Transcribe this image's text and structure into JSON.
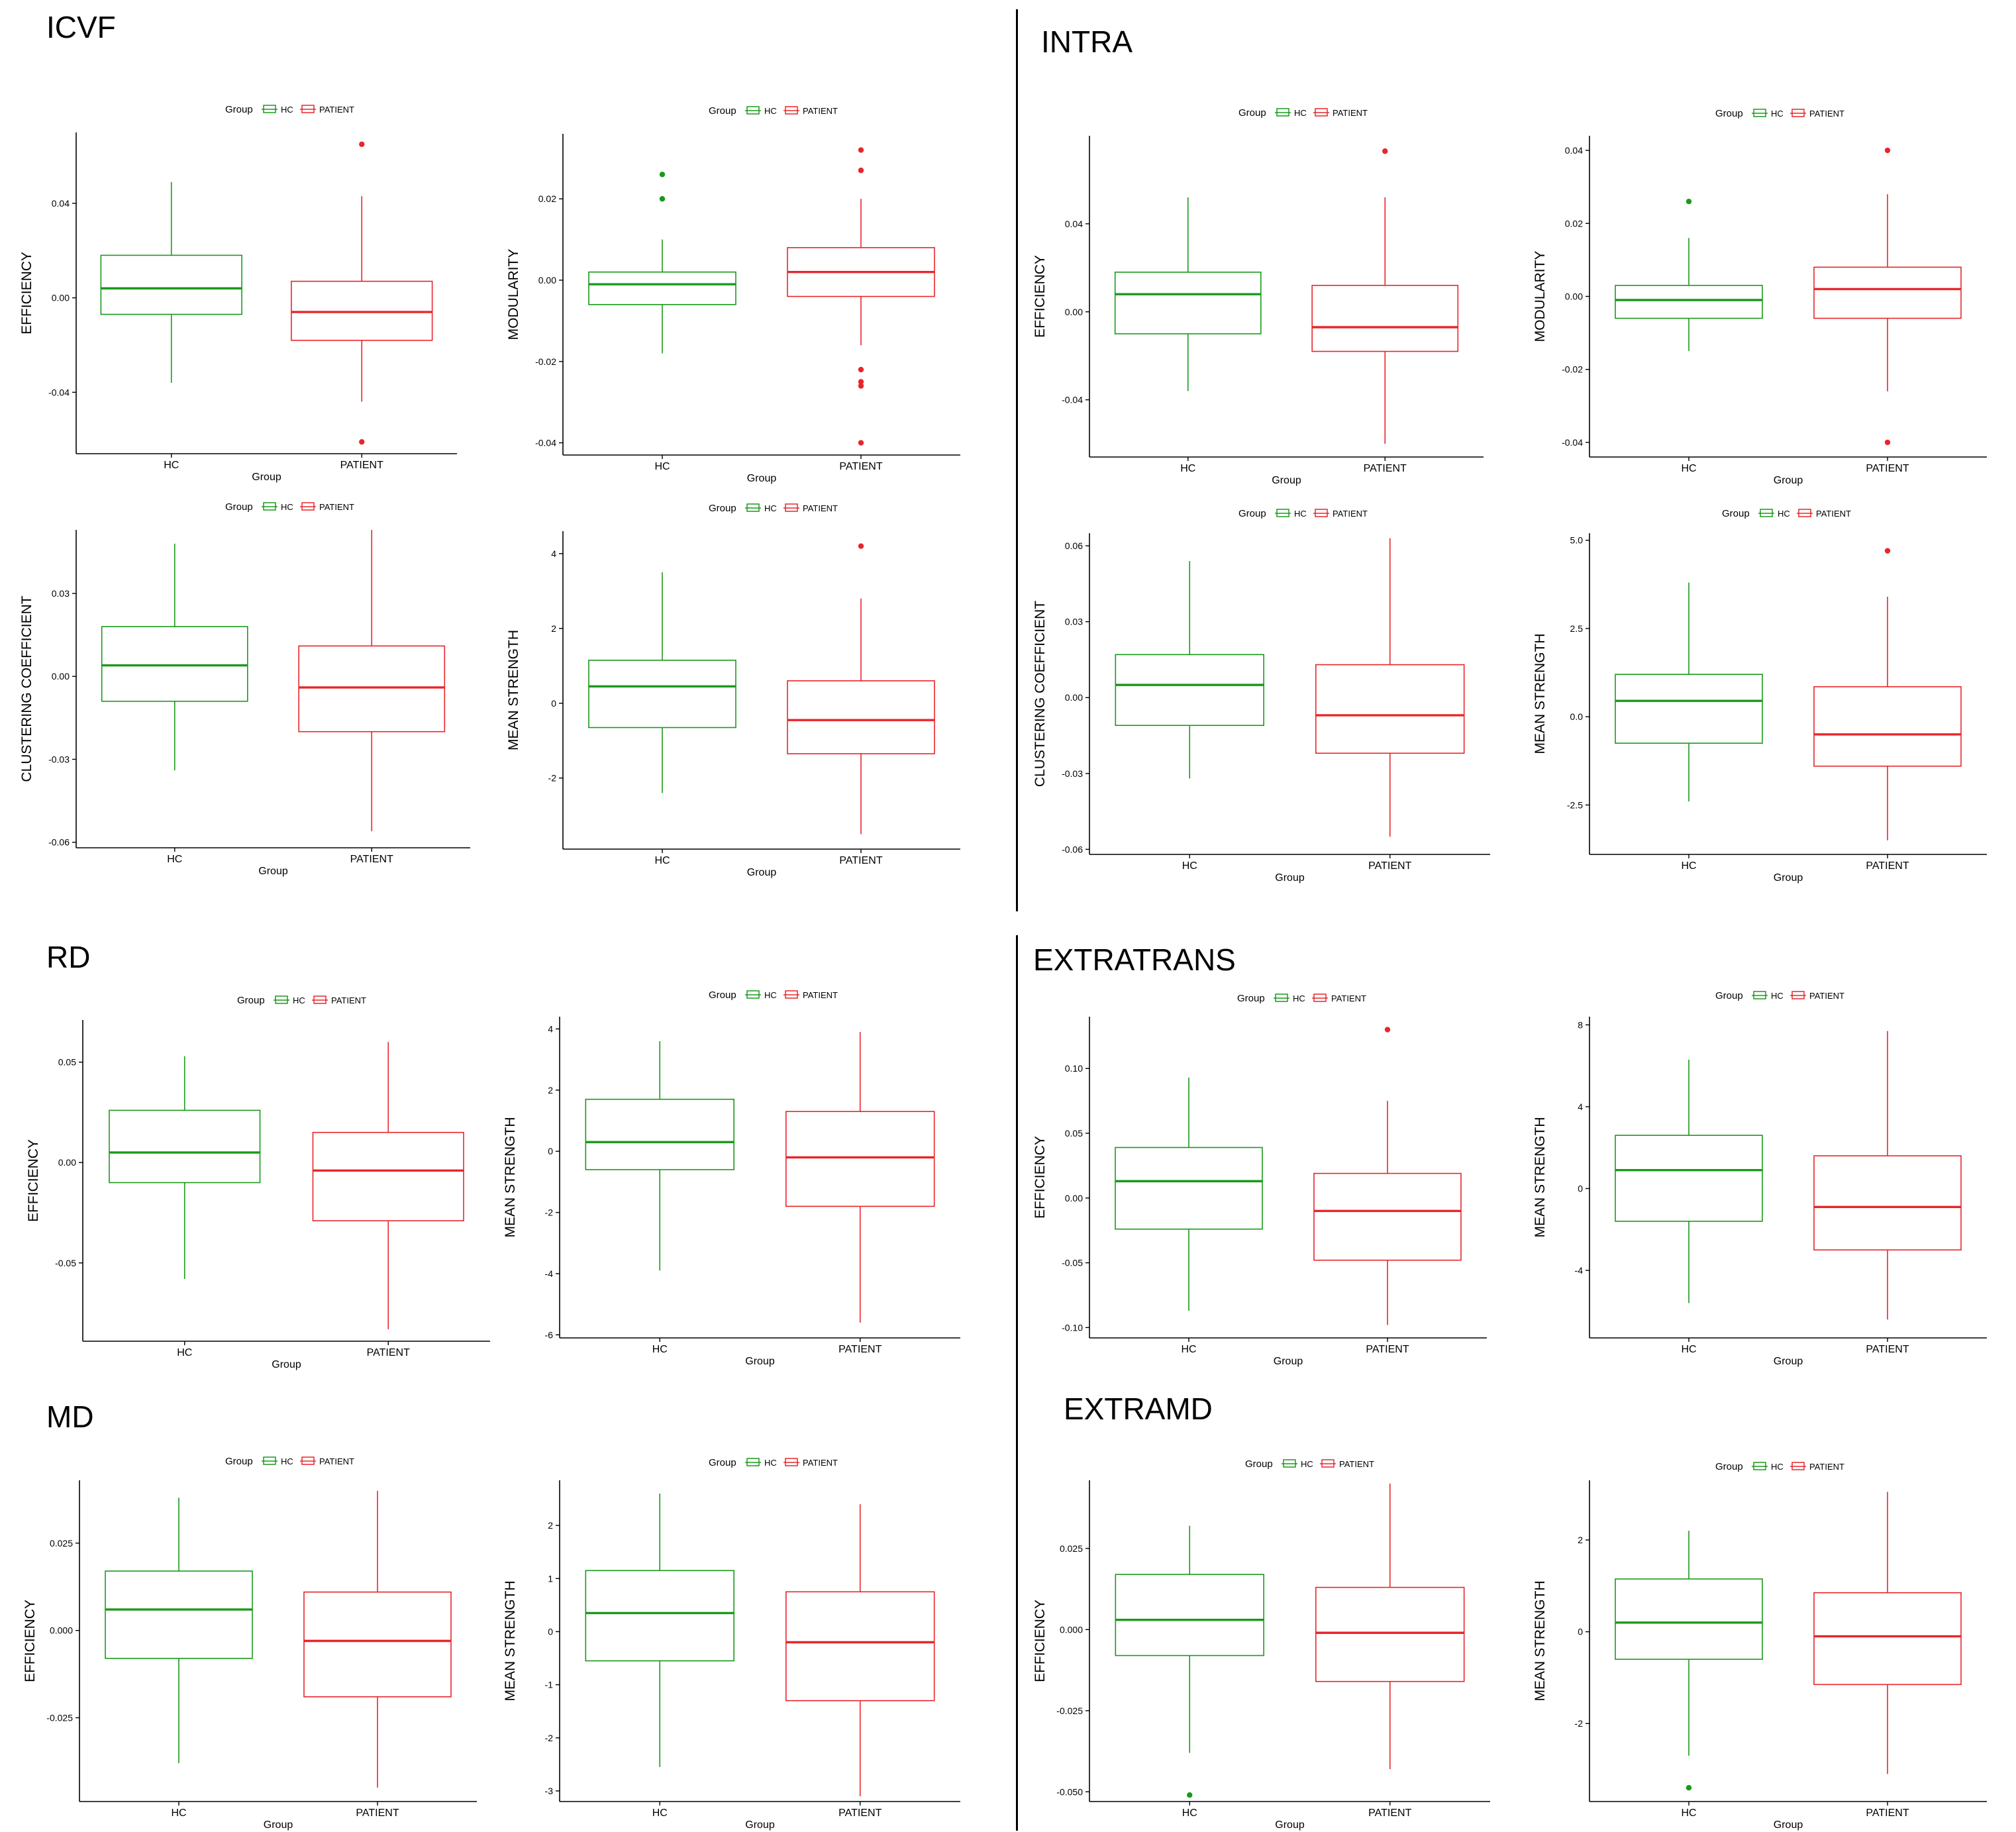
{
  "figure": {
    "sections": [
      {
        "key": "icvf",
        "title": "ICVF"
      },
      {
        "key": "intra",
        "title": "INTRA"
      },
      {
        "key": "rd",
        "title": "RD"
      },
      {
        "key": "extratrans",
        "title": "EXTRATRANS"
      },
      {
        "key": "md",
        "title": "MD"
      },
      {
        "key": "extramd",
        "title": "EXTRAMD"
      }
    ],
    "colors": {
      "hc": "#1a9a1a",
      "patient": "#e8262a"
    }
  },
  "chart_data": [
    {
      "id": "icvf_eff",
      "section": "ICVF",
      "type": "box",
      "xlabel": "Group",
      "ylabel": "EFFICIENCY",
      "legend": {
        "title": "Group",
        "entries": [
          "HC",
          "PATIENT"
        ]
      },
      "categories": [
        "HC",
        "PATIENT"
      ],
      "ylim": [
        -0.066,
        0.07
      ],
      "yticks": [
        0.04,
        0.0,
        -0.04
      ],
      "ytick_labels": [
        "0.04",
        "0.00",
        "-0.04"
      ],
      "boxes": [
        {
          "group": "HC",
          "min": -0.036,
          "q1": -0.007,
          "median": 0.004,
          "q3": 0.018,
          "max": 0.049,
          "outliers": []
        },
        {
          "group": "PATIENT",
          "min": -0.044,
          "q1": -0.018,
          "median": -0.006,
          "q3": 0.007,
          "max": 0.043,
          "outliers": [
            0.065,
            -0.061
          ]
        }
      ]
    },
    {
      "id": "icvf_mod",
      "section": "ICVF",
      "type": "box",
      "xlabel": "Group",
      "ylabel": "MODULARITY",
      "legend": {
        "title": "Group",
        "entries": [
          "HC",
          "PATIENT"
        ]
      },
      "categories": [
        "HC",
        "PATIENT"
      ],
      "ylim": [
        -0.043,
        0.036
      ],
      "yticks": [
        0.02,
        0.0,
        -0.02,
        -0.04
      ],
      "ytick_labels": [
        "0.02",
        "0.00",
        "-0.02",
        "-0.04"
      ],
      "boxes": [
        {
          "group": "HC",
          "min": -0.018,
          "q1": -0.006,
          "median": -0.001,
          "q3": 0.002,
          "max": 0.01,
          "outliers": [
            0.026,
            0.02
          ]
        },
        {
          "group": "PATIENT",
          "min": -0.016,
          "q1": -0.004,
          "median": 0.002,
          "q3": 0.008,
          "max": 0.02,
          "outliers": [
            0.032,
            0.027,
            -0.022,
            -0.025,
            -0.026,
            -0.04
          ]
        }
      ]
    },
    {
      "id": "icvf_cc",
      "section": "ICVF",
      "type": "box",
      "xlabel": "Group",
      "ylabel": "CLUSTERING COEFFICIENT",
      "legend": {
        "title": "Group",
        "entries": [
          "HC",
          "PATIENT"
        ]
      },
      "categories": [
        "HC",
        "PATIENT"
      ],
      "ylim": [
        -0.062,
        0.053
      ],
      "yticks": [
        0.03,
        0.0,
        -0.03,
        -0.06
      ],
      "ytick_labels": [
        "0.03",
        "0.00",
        "-0.03",
        "-0.06"
      ],
      "boxes": [
        {
          "group": "HC",
          "min": -0.034,
          "q1": -0.009,
          "median": 0.004,
          "q3": 0.018,
          "max": 0.048,
          "outliers": []
        },
        {
          "group": "PATIENT",
          "min": -0.056,
          "q1": -0.02,
          "median": -0.004,
          "q3": 0.011,
          "max": 0.053,
          "outliers": []
        }
      ]
    },
    {
      "id": "icvf_ms",
      "section": "ICVF",
      "type": "box",
      "xlabel": "Group",
      "ylabel": "MEAN STRENGTH",
      "legend": {
        "title": "Group",
        "entries": [
          "HC",
          "PATIENT"
        ]
      },
      "categories": [
        "HC",
        "PATIENT"
      ],
      "ylim": [
        -3.9,
        4.6
      ],
      "yticks": [
        4,
        2,
        0,
        -2
      ],
      "ytick_labels": [
        "4",
        "2",
        "0",
        "-2"
      ],
      "boxes": [
        {
          "group": "HC",
          "min": -2.4,
          "q1": -0.65,
          "median": 0.45,
          "q3": 1.15,
          "max": 3.5,
          "outliers": []
        },
        {
          "group": "PATIENT",
          "min": -3.5,
          "q1": -1.35,
          "median": -0.45,
          "q3": 0.6,
          "max": 2.8,
          "outliers": [
            4.2
          ]
        }
      ]
    },
    {
      "id": "intra_eff",
      "section": "INTRA",
      "type": "box",
      "xlabel": "Group",
      "ylabel": "EFFICIENCY",
      "legend": {
        "title": "Group",
        "entries": [
          "HC",
          "PATIENT"
        ]
      },
      "categories": [
        "HC",
        "PATIENT"
      ],
      "ylim": [
        -0.066,
        0.08
      ],
      "yticks": [
        0.04,
        0.0,
        -0.04
      ],
      "ytick_labels": [
        "0.04",
        "0.00",
        "-0.04"
      ],
      "boxes": [
        {
          "group": "HC",
          "min": -0.036,
          "q1": -0.01,
          "median": 0.008,
          "q3": 0.018,
          "max": 0.052,
          "outliers": []
        },
        {
          "group": "PATIENT",
          "min": -0.06,
          "q1": -0.018,
          "median": -0.007,
          "q3": 0.012,
          "max": 0.052,
          "outliers": [
            0.073
          ]
        }
      ]
    },
    {
      "id": "intra_mod",
      "section": "INTRA",
      "type": "box",
      "xlabel": "Group",
      "ylabel": "MODULARITY",
      "legend": {
        "title": "Group",
        "entries": [
          "HC",
          "PATIENT"
        ]
      },
      "categories": [
        "HC",
        "PATIENT"
      ],
      "ylim": [
        -0.044,
        0.044
      ],
      "yticks": [
        0.04,
        0.02,
        0.0,
        -0.02,
        -0.04
      ],
      "ytick_labels": [
        "0.04",
        "0.02",
        "0.00",
        "-0.02",
        "-0.04"
      ],
      "boxes": [
        {
          "group": "HC",
          "min": -0.015,
          "q1": -0.006,
          "median": -0.001,
          "q3": 0.003,
          "max": 0.016,
          "outliers": [
            0.026
          ]
        },
        {
          "group": "PATIENT",
          "min": -0.026,
          "q1": -0.006,
          "median": 0.002,
          "q3": 0.008,
          "max": 0.028,
          "outliers": [
            0.04,
            -0.04
          ]
        }
      ]
    },
    {
      "id": "intra_cc",
      "section": "INTRA",
      "type": "box",
      "xlabel": "Group",
      "ylabel": "CLUSTERING COEFFICIENT",
      "legend": {
        "title": "Group",
        "entries": [
          "HC",
          "PATIENT"
        ]
      },
      "categories": [
        "HC",
        "PATIENT"
      ],
      "ylim": [
        -0.062,
        0.065
      ],
      "yticks": [
        0.06,
        0.03,
        0.0,
        -0.03,
        -0.06
      ],
      "ytick_labels": [
        "0.06",
        "0.03",
        "0.00",
        "-0.03",
        "-0.06"
      ],
      "boxes": [
        {
          "group": "HC",
          "min": -0.032,
          "q1": -0.011,
          "median": 0.005,
          "q3": 0.017,
          "max": 0.054,
          "outliers": []
        },
        {
          "group": "PATIENT",
          "min": -0.055,
          "q1": -0.022,
          "median": -0.007,
          "q3": 0.013,
          "max": 0.063,
          "outliers": []
        }
      ]
    },
    {
      "id": "intra_ms",
      "section": "INTRA",
      "type": "box",
      "xlabel": "Group",
      "ylabel": "MEAN STRENGTH",
      "legend": {
        "title": "Group",
        "entries": [
          "HC",
          "PATIENT"
        ]
      },
      "categories": [
        "HC",
        "PATIENT"
      ],
      "ylim": [
        -3.9,
        5.2
      ],
      "yticks": [
        5.0,
        2.5,
        0.0,
        -2.5
      ],
      "ytick_labels": [
        "5.0",
        "2.5",
        "0.0",
        "-2.5"
      ],
      "boxes": [
        {
          "group": "HC",
          "min": -2.4,
          "q1": -0.75,
          "median": 0.45,
          "q3": 1.2,
          "max": 3.8,
          "outliers": []
        },
        {
          "group": "PATIENT",
          "min": -3.5,
          "q1": -1.4,
          "median": -0.5,
          "q3": 0.85,
          "max": 3.4,
          "outliers": [
            4.7
          ]
        }
      ]
    },
    {
      "id": "rd_eff",
      "section": "RD",
      "type": "box",
      "xlabel": "Group",
      "ylabel": "EFFICIENCY",
      "legend": {
        "title": "Group",
        "entries": [
          "HC",
          "PATIENT"
        ]
      },
      "categories": [
        "HC",
        "PATIENT"
      ],
      "ylim": [
        -0.089,
        0.071
      ],
      "yticks": [
        0.05,
        0.0,
        -0.05
      ],
      "ytick_labels": [
        "0.05",
        "0.00",
        "-0.05"
      ],
      "boxes": [
        {
          "group": "HC",
          "min": -0.058,
          "q1": -0.01,
          "median": 0.005,
          "q3": 0.026,
          "max": 0.053,
          "outliers": []
        },
        {
          "group": "PATIENT",
          "min": -0.083,
          "q1": -0.029,
          "median": -0.004,
          "q3": 0.015,
          "max": 0.06,
          "outliers": []
        }
      ]
    },
    {
      "id": "rd_ms",
      "section": "RD",
      "type": "box",
      "xlabel": "Group",
      "ylabel": "MEAN STRENGTH",
      "legend": {
        "title": "Group",
        "entries": [
          "HC",
          "PATIENT"
        ]
      },
      "categories": [
        "HC",
        "PATIENT"
      ],
      "ylim": [
        -6.1,
        4.4
      ],
      "yticks": [
        4,
        2,
        0,
        -2,
        -4,
        -6
      ],
      "ytick_labels": [
        "4",
        "2",
        "0",
        "-2",
        "-4",
        "-6"
      ],
      "boxes": [
        {
          "group": "HC",
          "min": -3.9,
          "q1": -0.6,
          "median": 0.3,
          "q3": 1.7,
          "max": 3.6,
          "outliers": []
        },
        {
          "group": "PATIENT",
          "min": -5.6,
          "q1": -1.8,
          "median": -0.2,
          "q3": 1.3,
          "max": 3.9,
          "outliers": []
        }
      ]
    },
    {
      "id": "extratrans_eff",
      "section": "EXTRATRANS",
      "type": "box",
      "xlabel": "Group",
      "ylabel": "EFFICIENCY",
      "legend": {
        "title": "Group",
        "entries": [
          "HC",
          "PATIENT"
        ]
      },
      "categories": [
        "HC",
        "PATIENT"
      ],
      "ylim": [
        -0.108,
        0.14
      ],
      "yticks": [
        0.1,
        0.05,
        0.0,
        -0.05,
        -0.1
      ],
      "ytick_labels": [
        "0.10",
        "0.05",
        "0.00",
        "-0.05",
        "-0.10"
      ],
      "boxes": [
        {
          "group": "HC",
          "min": -0.087,
          "q1": -0.024,
          "median": 0.013,
          "q3": 0.039,
          "max": 0.093,
          "outliers": []
        },
        {
          "group": "PATIENT",
          "min": -0.098,
          "q1": -0.048,
          "median": -0.01,
          "q3": 0.019,
          "max": 0.075,
          "outliers": [
            0.13
          ]
        }
      ]
    },
    {
      "id": "extratrans_ms",
      "section": "EXTRATRANS",
      "type": "box",
      "xlabel": "Group",
      "ylabel": "MEAN STRENGTH",
      "legend": {
        "title": "Group",
        "entries": [
          "HC",
          "PATIENT"
        ]
      },
      "categories": [
        "HC",
        "PATIENT"
      ],
      "ylim": [
        -7.3,
        8.4
      ],
      "yticks": [
        8,
        4,
        0,
        -4
      ],
      "ytick_labels": [
        "8",
        "4",
        "0",
        "-4"
      ],
      "boxes": [
        {
          "group": "HC",
          "min": -5.6,
          "q1": -1.6,
          "median": 0.9,
          "q3": 2.6,
          "max": 6.3,
          "outliers": []
        },
        {
          "group": "PATIENT",
          "min": -6.4,
          "q1": -3.0,
          "median": -0.9,
          "q3": 1.6,
          "max": 7.7,
          "outliers": []
        }
      ]
    },
    {
      "id": "md_eff",
      "section": "MD",
      "type": "box",
      "xlabel": "Group",
      "ylabel": "EFFICIENCY",
      "legend": {
        "title": "Group",
        "entries": [
          "HC",
          "PATIENT"
        ]
      },
      "categories": [
        "HC",
        "PATIENT"
      ],
      "ylim": [
        -0.049,
        0.043
      ],
      "yticks": [
        0.025,
        0.0,
        -0.025
      ],
      "ytick_labels": [
        "0.025",
        "0.000",
        "-0.025"
      ],
      "boxes": [
        {
          "group": "HC",
          "min": -0.038,
          "q1": -0.008,
          "median": 0.006,
          "q3": 0.017,
          "max": 0.038,
          "outliers": []
        },
        {
          "group": "PATIENT",
          "min": -0.045,
          "q1": -0.019,
          "median": -0.003,
          "q3": 0.011,
          "max": 0.04,
          "outliers": []
        }
      ]
    },
    {
      "id": "md_ms",
      "section": "MD",
      "type": "box",
      "xlabel": "Group",
      "ylabel": "MEAN STRENGTH",
      "legend": {
        "title": "Group",
        "entries": [
          "HC",
          "PATIENT"
        ]
      },
      "categories": [
        "HC",
        "PATIENT"
      ],
      "ylim": [
        -3.2,
        2.85
      ],
      "yticks": [
        2,
        1,
        0,
        -1,
        -2,
        -3
      ],
      "ytick_labels": [
        "2",
        "1",
        "0",
        "-1",
        "-2",
        "-3"
      ],
      "boxes": [
        {
          "group": "HC",
          "min": -2.55,
          "q1": -0.55,
          "median": 0.35,
          "q3": 1.15,
          "max": 2.6,
          "outliers": []
        },
        {
          "group": "PATIENT",
          "min": -3.1,
          "q1": -1.3,
          "median": -0.2,
          "q3": 0.75,
          "max": 2.4,
          "outliers": []
        }
      ]
    },
    {
      "id": "extramd_eff",
      "section": "EXTRAMD",
      "type": "box",
      "xlabel": "Group",
      "ylabel": "EFFICIENCY",
      "legend": {
        "title": "Group",
        "entries": [
          "HC",
          "PATIENT"
        ]
      },
      "categories": [
        "HC",
        "PATIENT"
      ],
      "ylim": [
        -0.053,
        0.046
      ],
      "yticks": [
        0.025,
        0.0,
        -0.025,
        -0.05
      ],
      "ytick_labels": [
        "0.025",
        "0.000",
        "-0.025",
        "-0.050"
      ],
      "boxes": [
        {
          "group": "HC",
          "min": -0.038,
          "q1": -0.008,
          "median": 0.003,
          "q3": 0.017,
          "max": 0.032,
          "outliers": [
            -0.051
          ]
        },
        {
          "group": "PATIENT",
          "min": -0.043,
          "q1": -0.016,
          "median": -0.001,
          "q3": 0.013,
          "max": 0.045,
          "outliers": []
        }
      ]
    },
    {
      "id": "extramd_ms",
      "section": "EXTRAMD",
      "type": "box",
      "xlabel": "Group",
      "ylabel": "MEAN STRENGTH",
      "legend": {
        "title": "Group",
        "entries": [
          "HC",
          "PATIENT"
        ]
      },
      "categories": [
        "HC",
        "PATIENT"
      ],
      "ylim": [
        -3.7,
        3.3
      ],
      "yticks": [
        2,
        0,
        -2
      ],
      "ytick_labels": [
        "2",
        "0",
        "-2"
      ],
      "boxes": [
        {
          "group": "HC",
          "min": -2.7,
          "q1": -0.6,
          "median": 0.2,
          "q3": 1.15,
          "max": 2.2,
          "outliers": [
            -3.4
          ]
        },
        {
          "group": "PATIENT",
          "min": -3.1,
          "q1": -1.15,
          "median": -0.1,
          "q3": 0.85,
          "max": 3.05,
          "outliers": []
        }
      ]
    }
  ]
}
